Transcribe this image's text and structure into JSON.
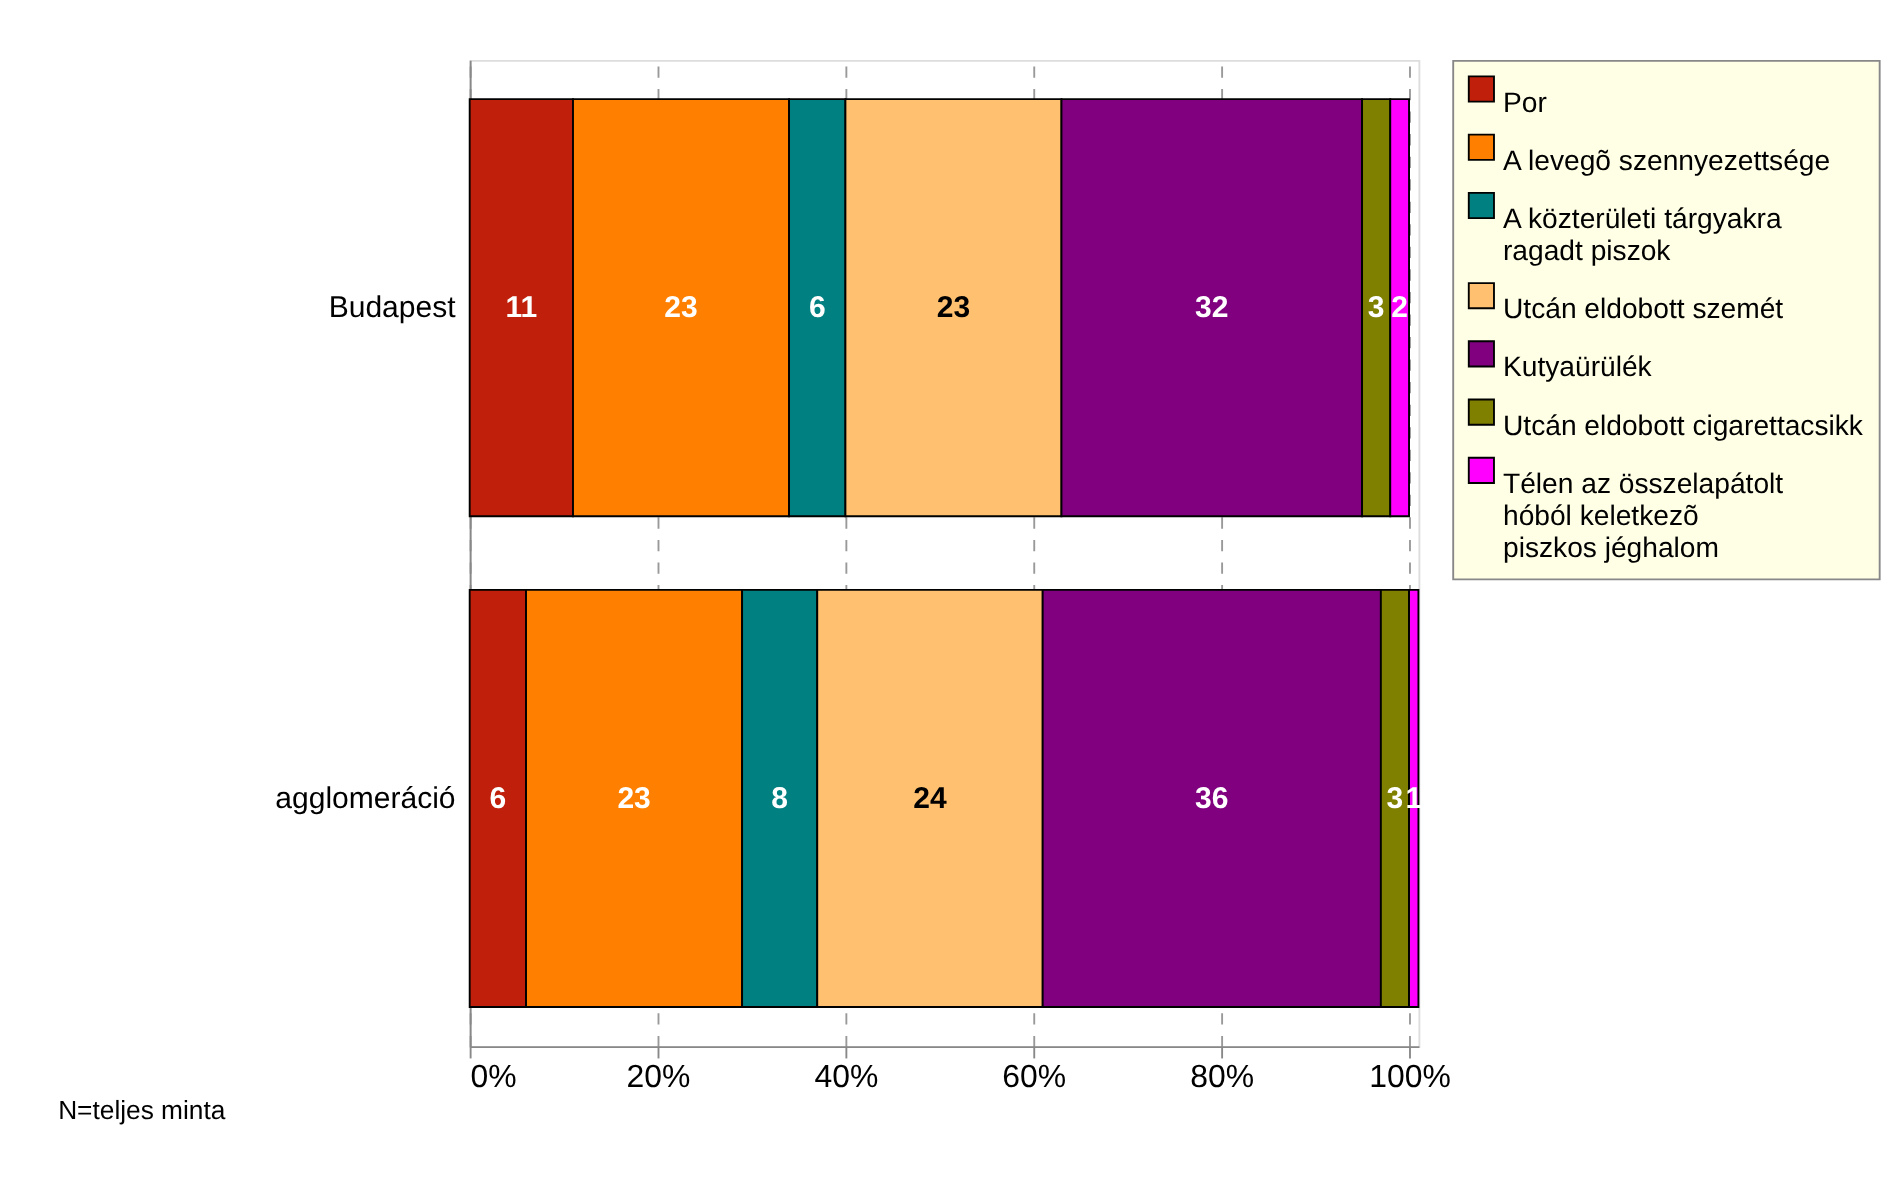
{
  "chart_data": {
    "type": "bar",
    "orientation": "horizontal",
    "stacked": true,
    "data_labels": true,
    "grid": "x",
    "legend": "right",
    "categories": [
      "Budapest",
      "agglomeráció"
    ],
    "xlim": [
      0,
      101
    ],
    "xticks": [
      {
        "value": 0,
        "label": "0%"
      },
      {
        "value": 20,
        "label": "20%"
      },
      {
        "value": 40,
        "label": "40%"
      },
      {
        "value": 60,
        "label": "60%"
      },
      {
        "value": 80,
        "label": "80%"
      },
      {
        "value": 100,
        "label": "100%"
      }
    ],
    "series": [
      {
        "name": "Por",
        "color": "#c0200b",
        "values": [
          11,
          6
        ]
      },
      {
        "name": "A levegõ szennyezettsége",
        "color": "#ff8000",
        "values": [
          23,
          23
        ]
      },
      {
        "name": "A közterületi tárgyakra\nragadt piszok",
        "color": "#008080",
        "values": [
          6,
          8
        ]
      },
      {
        "name": "Utcán eldobott szemét",
        "color": "#ffc070",
        "values": [
          23,
          24
        ]
      },
      {
        "name": "Kutyaürülék",
        "color": "#800080",
        "values": [
          32,
          36
        ]
      },
      {
        "name": "Utcán eldobott cigarettacsikk",
        "color": "#808000",
        "values": [
          3,
          3
        ]
      },
      {
        "name": "Télen az összelapátolt\nhóból keletkezõ\npiszkos jéghalom",
        "color": "#ff00ff",
        "values": [
          2,
          1
        ]
      }
    ],
    "annotations": [
      "N=teljes minta"
    ]
  }
}
